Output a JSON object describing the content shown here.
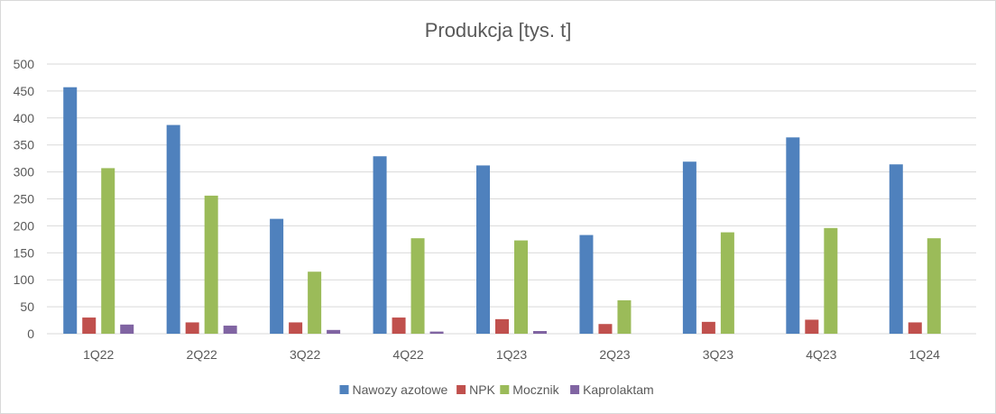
{
  "chart_data": {
    "type": "bar",
    "title": "Produkcja [tys. t]",
    "xlabel": "",
    "ylabel": "",
    "ylim": [
      0,
      500
    ],
    "yticks": [
      "0",
      "50",
      "100",
      "150",
      "200",
      "250",
      "300",
      "350",
      "400",
      "450",
      "500"
    ],
    "grid": true,
    "legend_position": "bottom",
    "categories": [
      "1Q22",
      "2Q22",
      "3Q22",
      "4Q22",
      "1Q23",
      "2Q23",
      "3Q23",
      "4Q23",
      "1Q24"
    ],
    "series": [
      {
        "name": "Nawozy azotowe",
        "color": "#4f81bd",
        "values": [
          457,
          387,
          213,
          329,
          312,
          183,
          319,
          364,
          314
        ]
      },
      {
        "name": "NPK",
        "color": "#c0504d",
        "values": [
          30,
          21,
          21,
          30,
          27,
          18,
          22,
          26,
          21
        ]
      },
      {
        "name": "Mocznik",
        "color": "#9bbb59",
        "values": [
          307,
          256,
          115,
          177,
          173,
          62,
          188,
          196,
          177
        ]
      },
      {
        "name": "Kaprolaktam",
        "color": "#8064a2",
        "values": [
          17,
          15,
          7,
          4,
          5,
          0,
          0,
          0,
          0
        ]
      }
    ]
  }
}
